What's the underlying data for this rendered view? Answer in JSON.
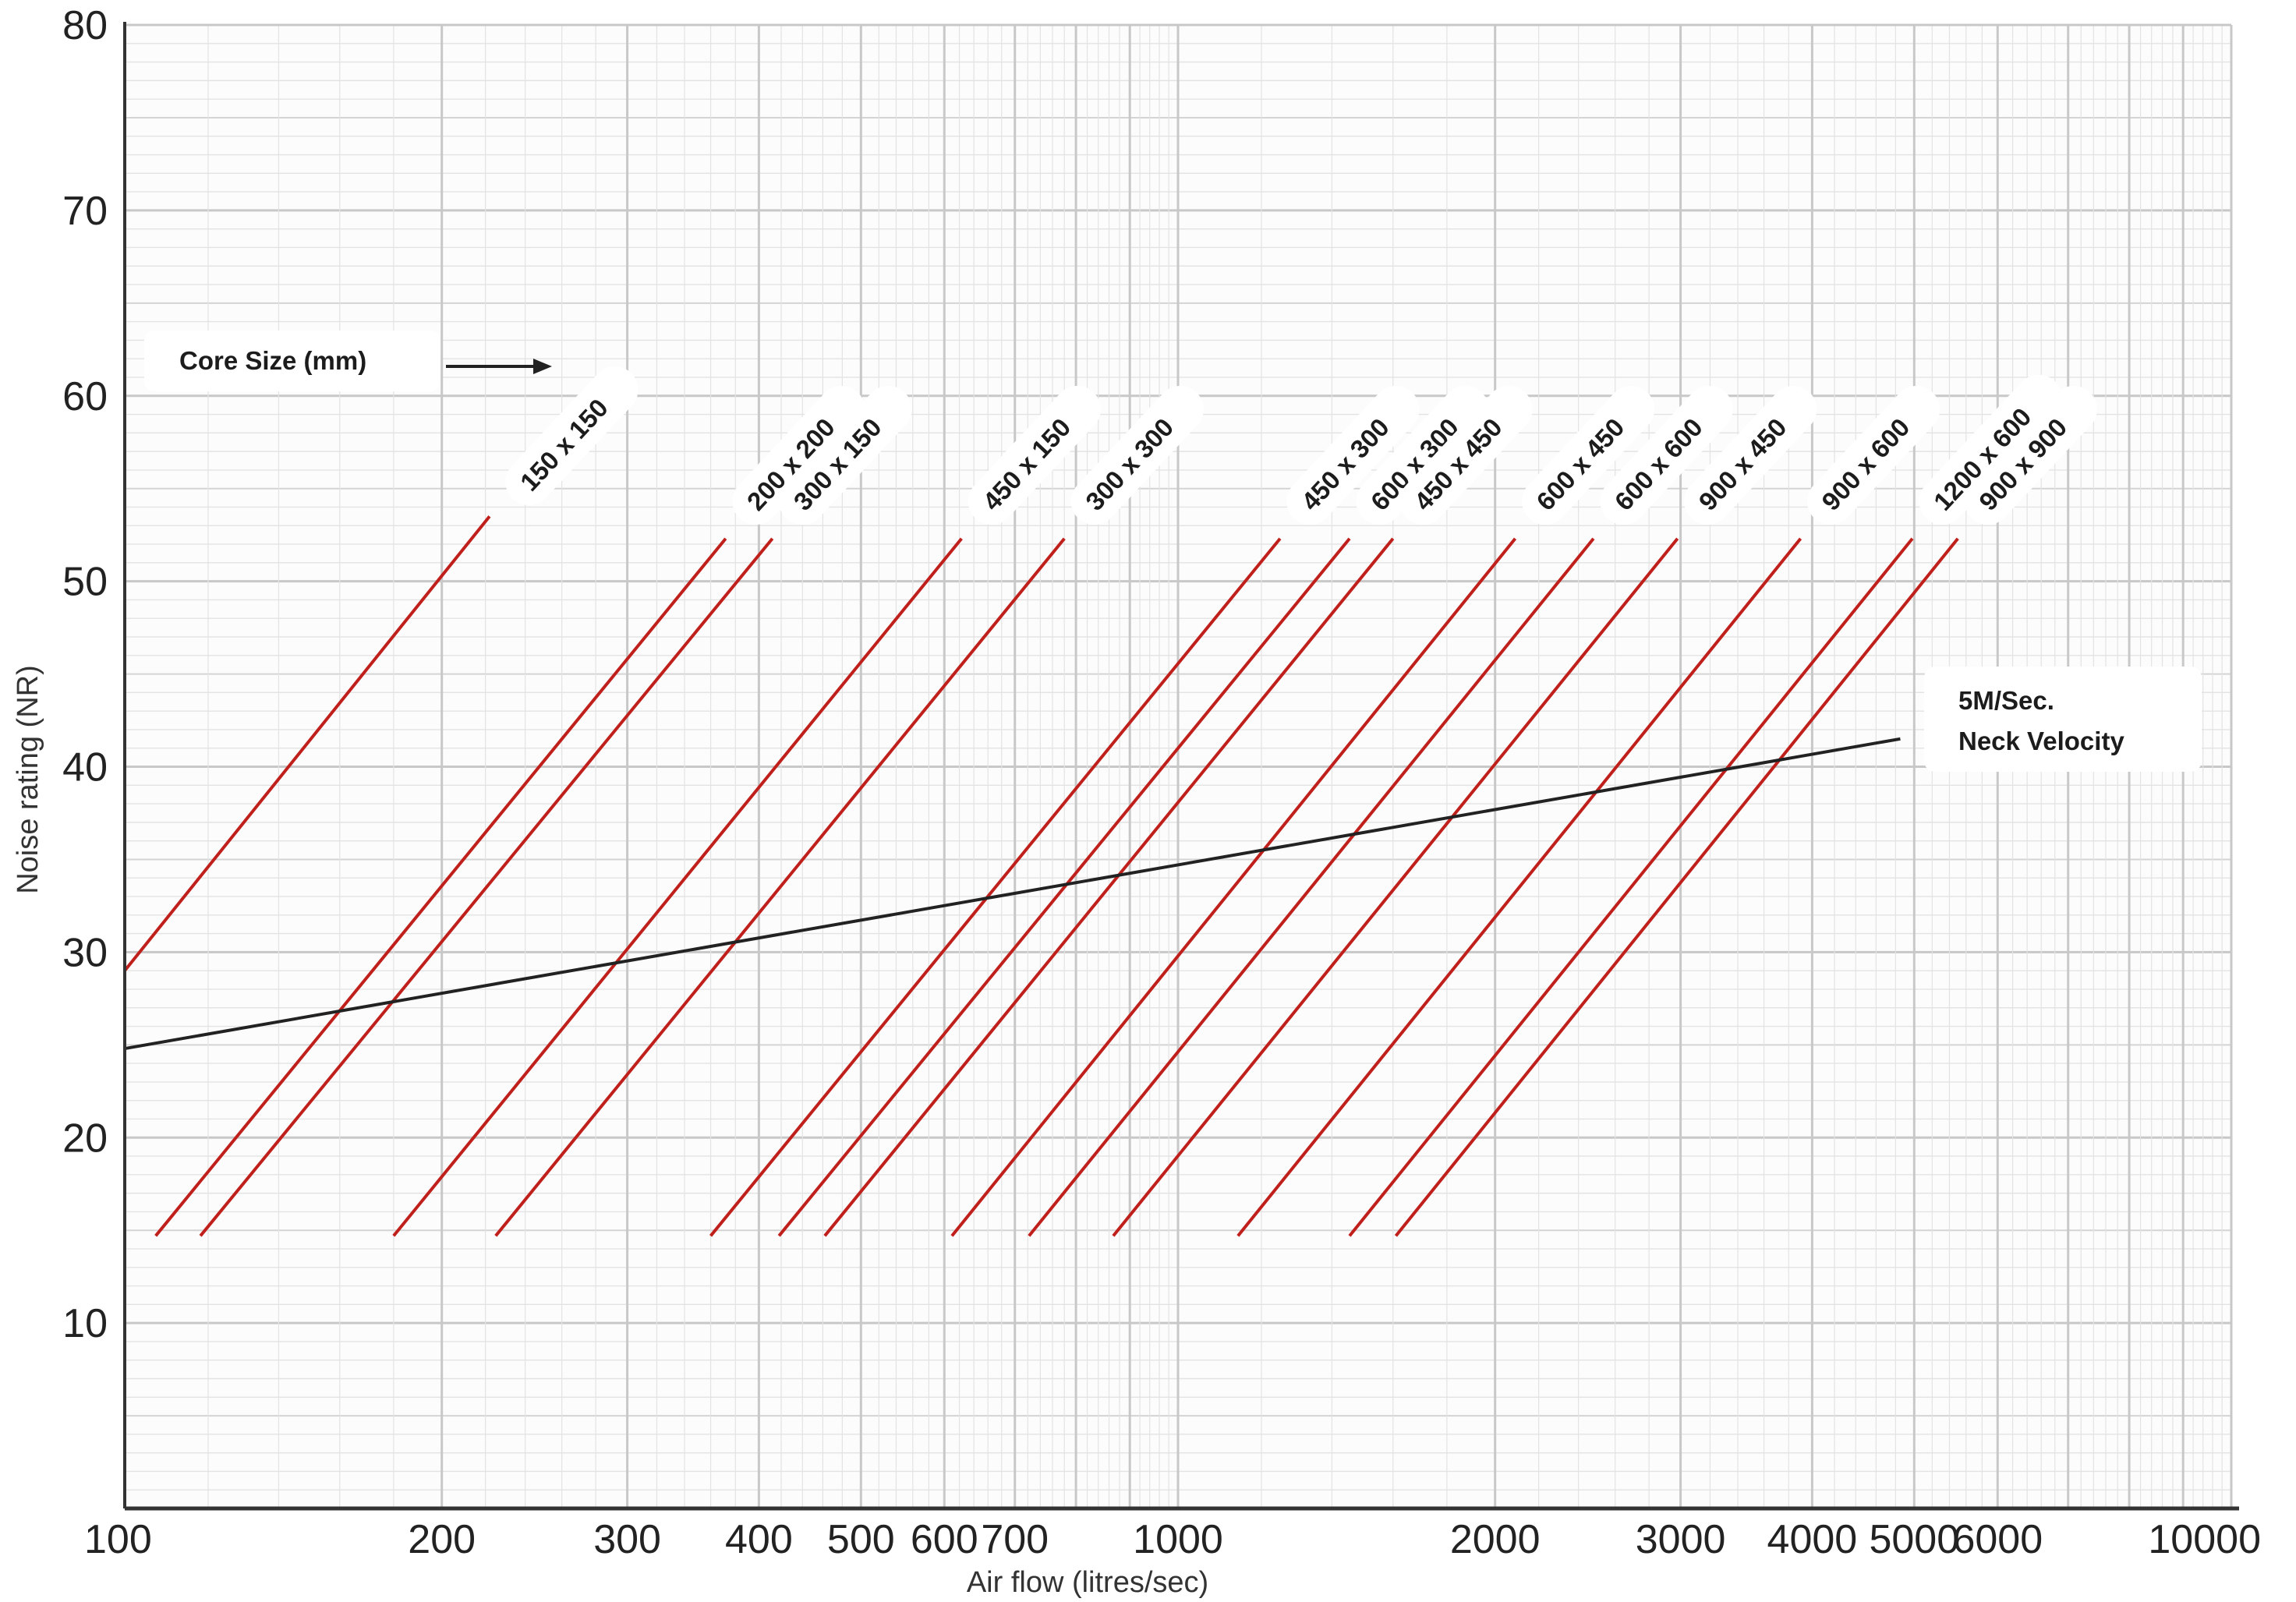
{
  "chart_data": {
    "type": "line",
    "xlabel": "Air flow (litres/sec)",
    "ylabel": "Noise rating (NR)",
    "x_scale": "log",
    "xlim": [
      100,
      10000
    ],
    "ylim": [
      0,
      80
    ],
    "grid": true,
    "x_ticks": [
      {
        "value": 100,
        "label": "100"
      },
      {
        "value": 200,
        "label": "200"
      },
      {
        "value": 300,
        "label": "300"
      },
      {
        "value": 400,
        "label": "400"
      },
      {
        "value": 500,
        "label": "500"
      },
      {
        "value": 600,
        "label": "600"
      },
      {
        "value": 700,
        "label": "700"
      },
      {
        "value": 1000,
        "label": "1000"
      },
      {
        "value": 2000,
        "label": "2000"
      },
      {
        "value": 3000,
        "label": "3000"
      },
      {
        "value": 4000,
        "label": "4000"
      },
      {
        "value": 5000,
        "label": "5000"
      },
      {
        "value": 6000,
        "label": "6000"
      },
      {
        "value": 10000,
        "label": "10000"
      }
    ],
    "y_ticks": [
      {
        "value": 10,
        "label": "10"
      },
      {
        "value": 20,
        "label": "20"
      },
      {
        "value": 30,
        "label": "30"
      },
      {
        "value": 40,
        "label": "40"
      },
      {
        "value": 50,
        "label": "50"
      },
      {
        "value": 60,
        "label": "60"
      },
      {
        "value": 70,
        "label": "70"
      },
      {
        "value": 80,
        "label": "80"
      }
    ],
    "core_size_title": "Core Size (mm)",
    "series": [
      {
        "name": "150 x 150",
        "x": [
          100,
          222
        ],
        "y": [
          29,
          53.5
        ]
      },
      {
        "name": "200 x 200",
        "x": [
          107,
          372
        ],
        "y": [
          14.7,
          52.3
        ]
      },
      {
        "name": "300 x 150",
        "x": [
          118,
          412
        ],
        "y": [
          14.7,
          52.3
        ]
      },
      {
        "name": "450 x 150",
        "x": [
          180,
          623
        ],
        "y": [
          14.7,
          52.3
        ]
      },
      {
        "name": "300 x 300",
        "x": [
          225,
          780
        ],
        "y": [
          14.7,
          52.3
        ]
      },
      {
        "name": "450 x 300",
        "x": [
          360,
          1250
        ],
        "y": [
          14.7,
          52.3
        ]
      },
      {
        "name": "600 x 300",
        "x": [
          418,
          1455
        ],
        "y": [
          14.7,
          52.3
        ]
      },
      {
        "name": "450 x 450",
        "x": [
          462,
          1600
        ],
        "y": [
          14.7,
          52.3
        ]
      },
      {
        "name": "600 x 450",
        "x": [
          610,
          2090
        ],
        "y": [
          14.7,
          52.3
        ]
      },
      {
        "name": "600 x 600",
        "x": [
          722,
          2480
        ],
        "y": [
          14.7,
          52.3
        ]
      },
      {
        "name": "900 x 450",
        "x": [
          868,
          2980
        ],
        "y": [
          14.7,
          52.3
        ]
      },
      {
        "name": "900 x 600",
        "x": [
          1140,
          3900
        ],
        "y": [
          14.7,
          52.3
        ]
      },
      {
        "name": "1200 x 600",
        "x": [
          1455,
          4980
        ],
        "y": [
          14.7,
          52.3
        ]
      },
      {
        "name": "900 x 900",
        "x": [
          1610,
          5500
        ],
        "y": [
          14.7,
          52.3
        ]
      }
    ],
    "velocity_line": {
      "label_line1": "5M/Sec.",
      "label_line2": "Neck Velocity",
      "x": [
        100,
        4850
      ],
      "y": [
        24.8,
        41.5
      ]
    },
    "colors": {
      "core_lines": "#c0201c",
      "velocity_line": "#222222",
      "grid_major": "#c8c8c8",
      "grid_minor": "#e3e3e3",
      "axis": "#333333"
    }
  }
}
